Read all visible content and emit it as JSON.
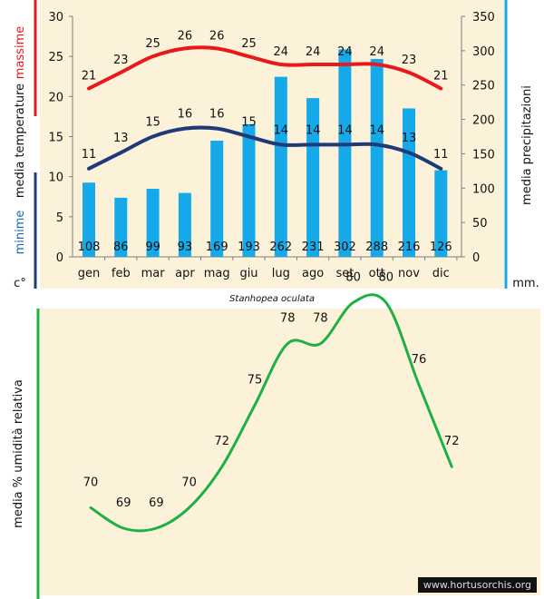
{
  "colors": {
    "bg": "#fbf2d9",
    "max_temp": "#e8191c",
    "min_temp": "#1f3a78",
    "bars": "#16a9ea",
    "humidity": "#1db043",
    "axis": "#7f7f7f"
  },
  "chart_data": [
    {
      "type": "bar",
      "title": "Stanhopea oculata",
      "categories": [
        "gen",
        "feb",
        "mar",
        "apr",
        "mag",
        "giu",
        "lug",
        "ago",
        "set",
        "ott",
        "nov",
        "dic"
      ],
      "left_axis": {
        "label_max": "massime",
        "label_mid": "media  temperature",
        "label_min": "minime",
        "unit": "c°",
        "ylim": [
          0,
          30
        ],
        "ticks": [
          "0",
          "5",
          "10",
          "15",
          "20",
          "25",
          "30"
        ]
      },
      "right_axis": {
        "label": "media  precipitazioni",
        "unit": "mm.",
        "ylim": [
          0,
          350
        ],
        "ticks": [
          "0",
          "50",
          "100",
          "150",
          "200",
          "250",
          "300",
          "350"
        ]
      },
      "series": [
        {
          "name": "massime",
          "type": "line",
          "axis": "left",
          "values": [
            21,
            23,
            25,
            26,
            26,
            25,
            24,
            24,
            24,
            24,
            23,
            21
          ]
        },
        {
          "name": "minime",
          "type": "line",
          "axis": "left",
          "values": [
            11,
            13,
            15,
            16,
            16,
            15,
            14,
            14,
            14,
            14,
            13,
            11
          ]
        },
        {
          "name": "precipitazioni",
          "type": "bar",
          "axis": "right",
          "values": [
            108,
            86,
            99,
            93,
            169,
            193,
            262,
            231,
            302,
            288,
            216,
            126
          ]
        }
      ]
    },
    {
      "type": "line",
      "ylabel": "media % umidità relativa",
      "categories": [
        "gen",
        "feb",
        "mar",
        "apr",
        "mag",
        "giu",
        "lug",
        "ago",
        "set",
        "ott",
        "nov",
        "dic"
      ],
      "values": [
        70,
        69,
        69,
        70,
        72,
        75,
        78,
        78,
        80,
        80,
        76,
        72
      ]
    }
  ],
  "watermark": "www.hortusorchis.org"
}
